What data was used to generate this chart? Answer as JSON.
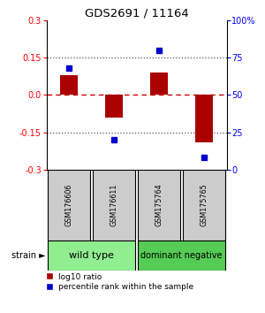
{
  "title": "GDS2691 / 11164",
  "samples": [
    "GSM176606",
    "GSM176611",
    "GSM175764",
    "GSM175765"
  ],
  "log10_ratio": [
    0.08,
    -0.09,
    0.09,
    -0.19
  ],
  "percentile_rank": [
    0.68,
    0.2,
    0.8,
    0.08
  ],
  "strain_labels": [
    "wild type",
    "dominant negative"
  ],
  "strain_colors": [
    "#90ee90",
    "#55cc55"
  ],
  "bar_color": "#aa0000",
  "dot_color": "#0000cc",
  "ylim": [
    -0.3,
    0.3
  ],
  "yticks_left": [
    -0.3,
    -0.15,
    0.0,
    0.15,
    0.3
  ],
  "yticks_right": [
    0,
    25,
    50,
    75,
    100
  ],
  "hline_zero_color": "#cc0000",
  "hline_dotted_color": "#555555",
  "bg_color": "#ffffff",
  "sample_box_color": "#cccccc",
  "legend_red_label": "log10 ratio",
  "legend_blue_label": "percentile rank within the sample"
}
